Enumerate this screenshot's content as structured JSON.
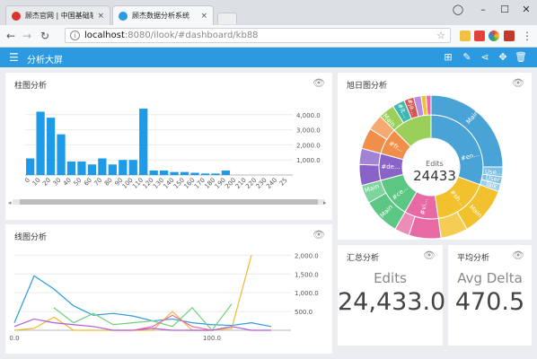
{
  "browser": {
    "tabs": [
      {
        "title": "顾杰官网 | 中国基础软件",
        "close": "×"
      },
      {
        "title": "顾杰数据分析系统",
        "close": "×"
      }
    ],
    "address": {
      "host": "localhost",
      "path": ":8080/ilook/#dashboard/kb88"
    }
  },
  "app": {
    "title": "分析大屏",
    "accent": "#2b9ae0"
  },
  "panels": {
    "bar": {
      "title": "柱图分析"
    },
    "sunburst": {
      "title": "旭日图分析",
      "center_title": "Edits",
      "center_value": "24433"
    },
    "line": {
      "title": "线图分析"
    },
    "summary": {
      "title": "汇总分析",
      "label": "Edits",
      "value": "24,433.0"
    },
    "average": {
      "title": "平均分析",
      "label": "Avg Delta",
      "value": "470.5"
    }
  },
  "chart_data": [
    {
      "type": "bar",
      "categories": [
        "0",
        "10",
        "20",
        "30",
        "40",
        "50",
        "60",
        "70",
        "80",
        "90",
        "100",
        "110",
        "120",
        "130",
        "140",
        "150",
        "160",
        "170",
        "180",
        "190",
        "200",
        "210",
        "220",
        "230",
        "240",
        "25"
      ],
      "values": [
        1100,
        4200,
        3800,
        2700,
        900,
        900,
        700,
        1100,
        700,
        1000,
        1000,
        4400,
        300,
        300,
        200,
        200,
        150,
        100,
        100,
        300,
        0,
        0,
        0,
        0,
        0,
        0
      ],
      "y_ticks": [
        "1,000.0",
        "2,000.0",
        "3,000.0",
        "4,000.0"
      ],
      "ylim": [
        0,
        5000
      ],
      "color": "#1e9be8"
    },
    {
      "type": "sunburst",
      "labels": [
        "Main",
        "#en...",
        "Use...",
        "User",
        "Talk",
        "Main",
        "#sh...",
        "#vi...",
        "#ce...",
        "#de...",
        "#fr...",
        "Main",
        "#it...",
        "#ja...",
        "Main",
        "Main"
      ],
      "colors": [
        "#4aa3d6",
        "#f2c12e",
        "#e86aa5",
        "#5bc783",
        "#8a63c9",
        "#f08f4a",
        "#9ad05a",
        "#3fb8b2",
        "#d9534f"
      ]
    },
    {
      "type": "line",
      "x_ticks": [
        "0.0",
        "100.0"
      ],
      "y_ticks": [
        "500.0",
        "1,000.0",
        "1,500.0",
        "2,000.0"
      ],
      "ylim": [
        0,
        2200
      ],
      "xlim": [
        0,
        140
      ],
      "series": [
        {
          "color": "#2c9be0",
          "x": [
            0,
            10,
            20,
            30,
            40,
            50,
            60,
            70,
            80,
            90,
            100,
            110,
            120,
            130
          ],
          "y": [
            200,
            1450,
            1100,
            650,
            400,
            450,
            380,
            250,
            300,
            200,
            150,
            130,
            200,
            100
          ]
        },
        {
          "color": "#f2b635",
          "x": [
            0,
            10,
            20,
            30,
            40,
            50,
            60,
            70,
            80,
            90,
            100,
            110,
            120
          ],
          "y": [
            0,
            50,
            350,
            0,
            0,
            0,
            0,
            0,
            500,
            0,
            0,
            50,
            2000
          ]
        },
        {
          "color": "#6fd17d",
          "x": [
            20,
            30,
            40,
            50,
            60,
            70,
            80,
            90,
            100,
            110
          ],
          "y": [
            600,
            200,
            450,
            150,
            200,
            250,
            100,
            600,
            0,
            700
          ]
        },
        {
          "color": "#b35bd9",
          "x": [
            0,
            10,
            20,
            30,
            40,
            50,
            60,
            70,
            80,
            90,
            100,
            110,
            120,
            130
          ],
          "y": [
            100,
            300,
            200,
            150,
            100,
            0,
            0,
            50,
            0,
            0,
            0,
            100,
            0,
            0
          ]
        },
        {
          "color": "#e86aa5",
          "x": [
            60,
            70,
            80,
            90,
            100
          ],
          "y": [
            0,
            100,
            400,
            100,
            0
          ]
        }
      ]
    }
  ]
}
